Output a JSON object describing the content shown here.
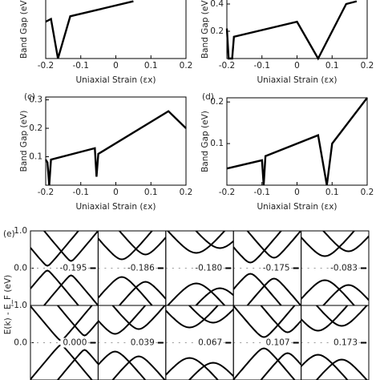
{
  "chart_data": [
    {
      "type": "line",
      "xlabel": "Uniaxial Strain (εx)",
      "ylabel": "Band Gap (eV)",
      "color": "#000000",
      "x": [
        -0.2,
        -0.185,
        -0.165,
        -0.13,
        0.05
      ],
      "values": [
        0.27,
        0.29,
        0.0,
        0.31,
        0.42
      ],
      "xlim": [
        -0.2,
        0.2
      ],
      "ylim": [
        0,
        0.45
      ],
      "xticks": [
        -0.2,
        -0.1,
        0,
        0.1,
        0.2
      ],
      "yticks": []
    },
    {
      "type": "line",
      "xlabel": "Uniaxial Strain (εx)",
      "ylabel": "Band Gap (eV)",
      "color": "#000000",
      "x": [
        -0.2,
        -0.195,
        -0.185,
        -0.18,
        0,
        0.06,
        0.14,
        0.17
      ],
      "values": [
        0.22,
        0.0,
        0.0,
        0.16,
        0.27,
        0.0,
        0.4,
        0.42
      ],
      "xlim": [
        -0.2,
        0.2
      ],
      "ylim": [
        0,
        0.45
      ],
      "xticks": [
        -0.2,
        -0.1,
        0,
        0.1,
        0.2
      ],
      "yticks": [
        0.2,
        0.4
      ]
    },
    {
      "type": "line",
      "panel": "(c)",
      "xlabel": "Uniaxial Strain (εx)",
      "ylabel": "Band Gap (eV)",
      "color": "#000000",
      "x": [
        -0.2,
        -0.195,
        -0.19,
        -0.185,
        -0.06,
        -0.055,
        -0.05,
        0.15,
        0.2
      ],
      "values": [
        0.09,
        0.08,
        0.0,
        0.09,
        0.13,
        0.03,
        0.11,
        0.26,
        0.2
      ],
      "xlim": [
        -0.2,
        0.2
      ],
      "ylim": [
        0,
        0.31
      ],
      "xticks": [
        -0.2,
        -0.1,
        0,
        0.1,
        0.2
      ],
      "yticks": [
        0.1,
        0.2,
        0.3
      ]
    },
    {
      "type": "line",
      "panel": "(d)",
      "xlabel": "Uniaxial Strain (εx)",
      "ylabel": "Band Gap (eV)",
      "color": "#000000",
      "x": [
        -0.2,
        -0.1,
        -0.095,
        -0.09,
        0.06,
        0.085,
        0.1,
        0.2
      ],
      "values": [
        0.04,
        0.06,
        0.0,
        0.07,
        0.12,
        0.0,
        0.1,
        0.21
      ],
      "xlim": [
        -0.2,
        0.2
      ],
      "ylim": [
        0,
        0.21
      ],
      "xticks": [
        -0.2,
        -0.1,
        0,
        0.1,
        0.2
      ],
      "yticks": [
        0.1,
        0.2
      ]
    },
    {
      "type": "bands",
      "panel": "(e)",
      "ylabel": "E(k) - E_F (eV)",
      "ylim": [
        -1,
        1
      ],
      "yticks": [
        {
          "value": 1,
          "label": "1.0"
        },
        {
          "value": 0,
          "label": "0.0"
        },
        {
          "value": -1,
          "label": "-1.0"
        }
      ],
      "annotations": [
        "-0.195",
        "-0.186",
        "-0.180",
        "-0.175",
        "-0.083",
        "0.000",
        "0.039",
        "0.067",
        "0.107",
        "0.173"
      ]
    }
  ]
}
